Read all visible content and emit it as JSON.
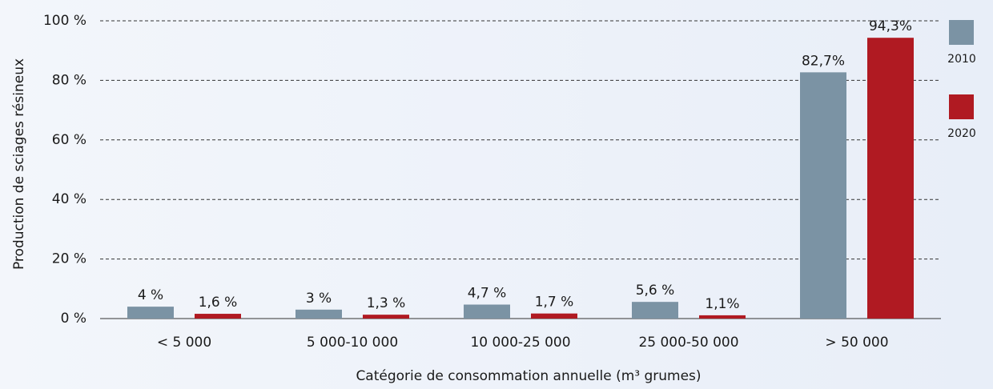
{
  "chart_data": {
    "type": "bar",
    "x_label": "Catégorie de consommation annuelle (m³ grumes)",
    "y_label": "Production de sciages résineux",
    "categories": [
      "< 5 000",
      "5 000-10 000",
      "10 000-25 000",
      "25 000-50 000",
      "> 50 000"
    ],
    "series": [
      {
        "name": "2010",
        "color": "#7b93a4",
        "values": [
          4,
          3,
          4.7,
          5.6,
          82.7
        ],
        "value_labels": [
          "4 %",
          "3 %",
          "4,7 %",
          "5,6 %",
          "82,7%"
        ]
      },
      {
        "name": "2020",
        "color": "#b01a22",
        "values": [
          1.6,
          1.3,
          1.7,
          1.1,
          94.3
        ],
        "value_labels": [
          "1,6 %",
          "1,3 %",
          "1,7 %",
          "1,1%",
          "94,3%"
        ]
      }
    ],
    "ylim": [
      0,
      100
    ],
    "yticks": [
      {
        "value": 0,
        "label": "0 %"
      },
      {
        "value": 20,
        "label": "20 %"
      },
      {
        "value": 40,
        "label": "40 %"
      },
      {
        "value": 60,
        "label": "60 %"
      },
      {
        "value": 80,
        "label": "80 %"
      },
      {
        "value": 100,
        "label": "100 %"
      }
    ],
    "grid": true,
    "legend": "right"
  }
}
